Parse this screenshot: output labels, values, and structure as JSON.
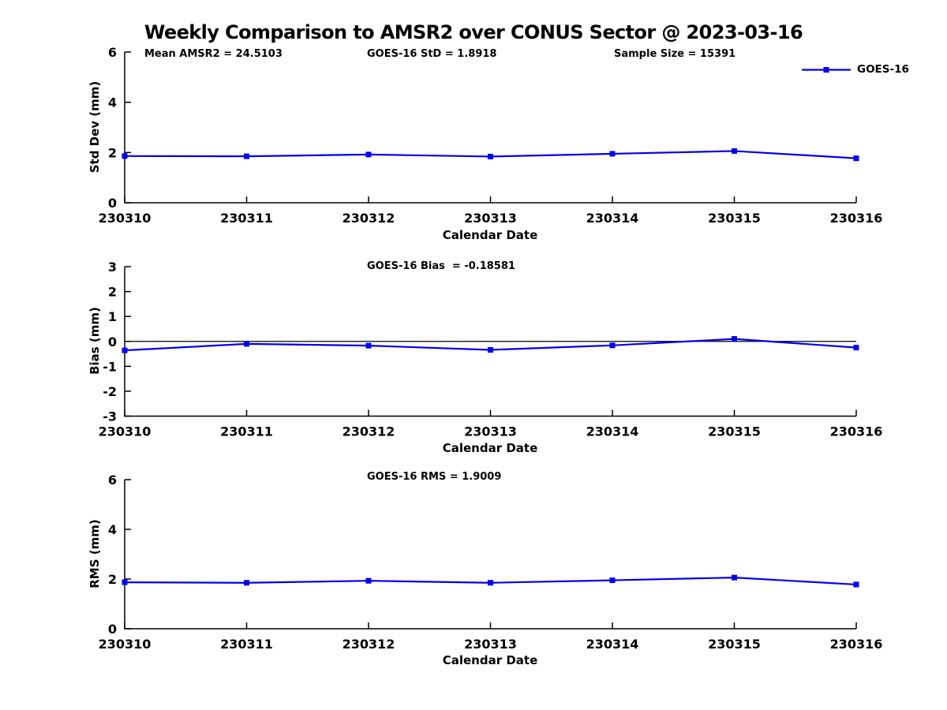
{
  "title": "Weekly Comparison to AMSR2 over CONUS Sector @ 2023-03-16",
  "legend": {
    "label": "GOES-16"
  },
  "colors": {
    "series": "#0000EE",
    "axis": "#000000",
    "zero_line": "#000000",
    "background": "#ffffff"
  },
  "chart_data": [
    {
      "type": "line",
      "title": "Weekly Comparison to AMSR2 over CONUS Sector @ 2023-03-16",
      "categories": [
        "230310",
        "230311",
        "230312",
        "230313",
        "230314",
        "230315",
        "230316"
      ],
      "series": [
        {
          "name": "GOES-16",
          "values": [
            1.86,
            1.85,
            1.92,
            1.84,
            1.95,
            2.06,
            1.77
          ]
        }
      ],
      "xlabel": "Calendar Date",
      "ylabel": "Std Dev (mm)",
      "ylim": [
        0,
        6
      ],
      "yticks": [
        0,
        2,
        4,
        6
      ],
      "grid": false,
      "legend_position": "top-right",
      "annotations": [
        "Mean AMSR2 = 24.5103",
        "GOES-16 StD = 1.8918",
        "Sample Size = 15391"
      ]
    },
    {
      "type": "line",
      "categories": [
        "230310",
        "230311",
        "230312",
        "230313",
        "230314",
        "230315",
        "230316"
      ],
      "series": [
        {
          "name": "GOES-16",
          "values": [
            -0.36,
            -0.1,
            -0.17,
            -0.34,
            -0.16,
            0.1,
            -0.25
          ]
        }
      ],
      "xlabel": "Calendar Date",
      "ylabel": "Bias (mm)",
      "ylim": [
        -3,
        3
      ],
      "yticks": [
        3,
        2,
        1,
        0,
        -1,
        -2,
        -3
      ],
      "zero_line": true,
      "grid": false,
      "annotations": [
        "GOES-16 Bias  = -0.18581"
      ]
    },
    {
      "type": "line",
      "categories": [
        "230310",
        "230311",
        "230312",
        "230313",
        "230314",
        "230315",
        "230316"
      ],
      "series": [
        {
          "name": "GOES-16",
          "values": [
            1.87,
            1.85,
            1.93,
            1.85,
            1.95,
            2.06,
            1.78
          ]
        }
      ],
      "xlabel": "Calendar Date",
      "ylabel": "RMS (mm)",
      "ylim": [
        0,
        6
      ],
      "yticks": [
        0,
        2,
        4,
        6
      ],
      "grid": false,
      "annotations": [
        "GOES-16 RMS = 1.9009"
      ]
    }
  ]
}
